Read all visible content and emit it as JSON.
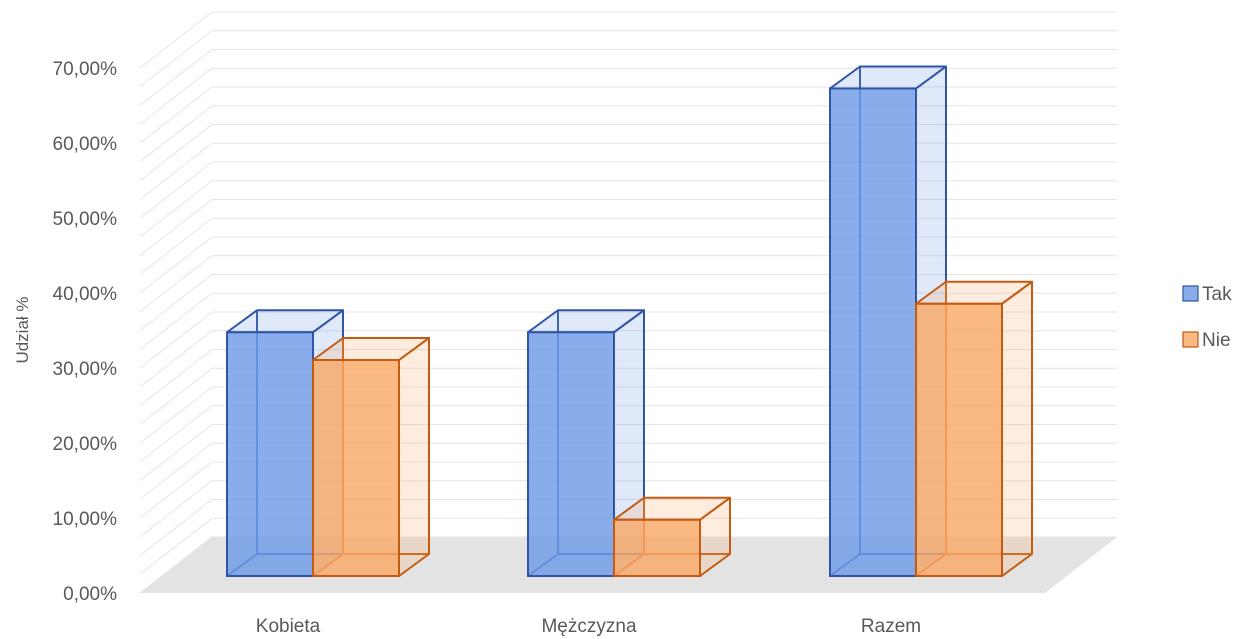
{
  "chart_data": {
    "type": "bar",
    "variant": "3d-clustered-column",
    "categories": [
      "Kobieta",
      "Mężczyzna",
      "Razem"
    ],
    "series": [
      {
        "name": "Tak",
        "values": [
          32.5,
          32.5,
          65.0
        ],
        "color": "#6f9be6",
        "edge_color": "#2f55a4"
      },
      {
        "name": "Nie",
        "values": [
          28.8,
          7.5,
          36.3
        ],
        "color": "#f9a868",
        "edge_color": "#c55a11"
      }
    ],
    "ylabel": "Udział %",
    "xlabel": "",
    "title": "",
    "ylim": [
      0,
      70
    ],
    "y_ticks": [
      "0,00%",
      "10,00%",
      "20,00%",
      "30,00%",
      "40,00%",
      "50,00%",
      "60,00%",
      "70,00%"
    ],
    "grid": true,
    "legend_position": "right"
  }
}
